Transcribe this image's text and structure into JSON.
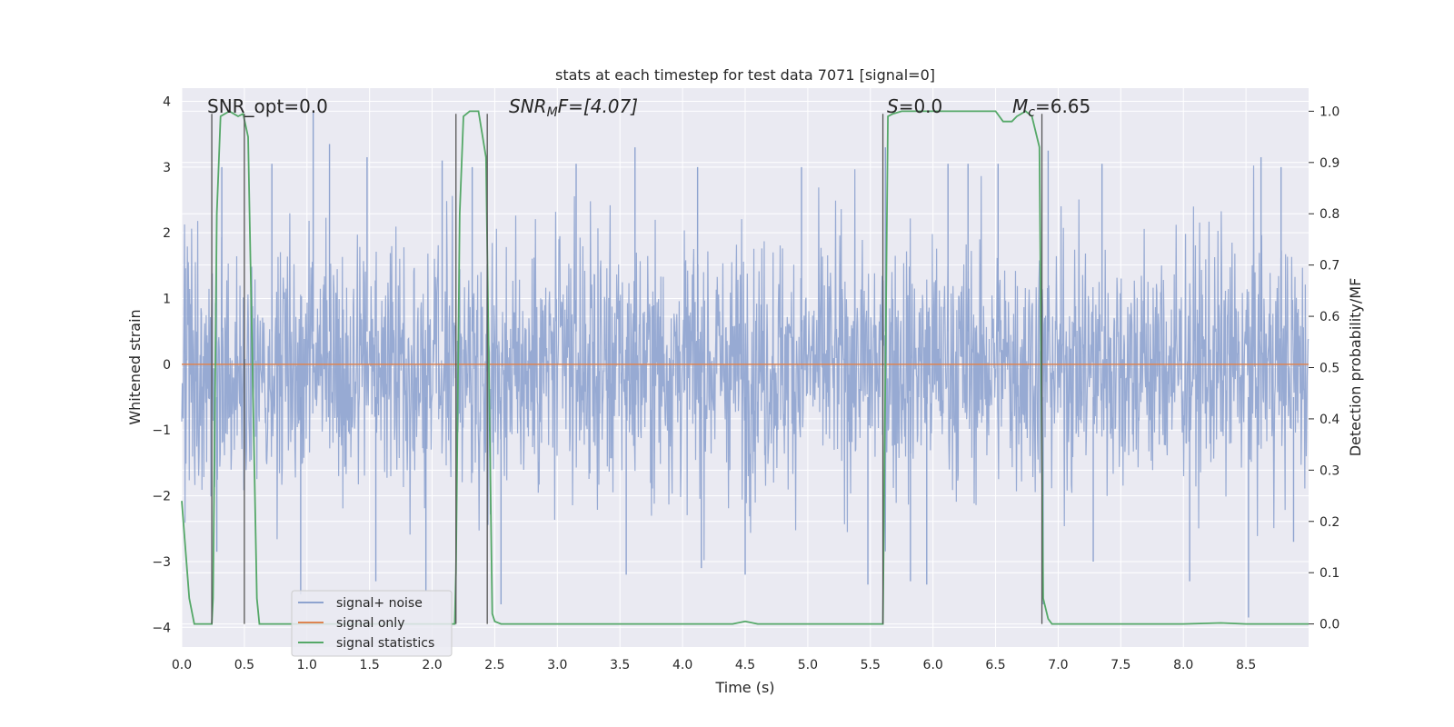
{
  "chart_data": {
    "type": "line",
    "title": "stats at each timestep for test data 7071 [signal=0]",
    "xlabel": "Time (s)",
    "ylabel": "Whitened strain",
    "y2label": "Detection probability/MF",
    "xlim": [
      0.0,
      9.0
    ],
    "ylim": [
      -4.3,
      4.2
    ],
    "y2lim": [
      -0.045,
      1.045
    ],
    "xticks": [
      0.0,
      0.5,
      1.0,
      1.5,
      2.0,
      2.5,
      3.0,
      3.5,
      4.0,
      4.5,
      5.0,
      5.5,
      6.0,
      6.5,
      7.0,
      7.5,
      8.0,
      8.5
    ],
    "xtick_labels": [
      "0.0",
      "0.5",
      "1.0",
      "1.5",
      "2.0",
      "2.5",
      "3.0",
      "3.5",
      "4.0",
      "4.5",
      "5.0",
      "5.5",
      "6.0",
      "6.5",
      "7.0",
      "7.5",
      "8.0",
      "8.5"
    ],
    "yticks": [
      -4,
      -3,
      -2,
      -1,
      0,
      1,
      2,
      3,
      4
    ],
    "ytick_labels": [
      "−4",
      "−3",
      "−2",
      "−1",
      "0",
      "1",
      "2",
      "3",
      "4"
    ],
    "y2ticks": [
      0.0,
      0.1,
      0.2,
      0.3,
      0.4,
      0.5,
      0.6,
      0.7,
      0.8,
      0.9,
      1.0
    ],
    "y2tick_labels": [
      "0.0",
      "0.1",
      "0.2",
      "0.3",
      "0.4",
      "0.5",
      "0.6",
      "0.7",
      "0.8",
      "0.9",
      "1.0"
    ],
    "grid": true,
    "legend_position": "lower-left",
    "annotations": {
      "snr_opt": "SNR_opt=0.0",
      "snr_mf_prefix": "SNR",
      "snr_mf_sub": "M",
      "snr_mf_suffix": "F=[4.07]",
      "s_prefix": "S",
      "s_value": "=0.0",
      "mc_prefix": "M",
      "mc_sub": "c",
      "mc_value": "=6.65"
    },
    "noise_envelope": {
      "description": "whitened strain noise, signal+ noise series",
      "typical_range": [
        -2.0,
        2.5
      ],
      "max": 3.85,
      "min": -3.85,
      "spikes_high": [
        [
          0.32,
          3.0
        ],
        [
          0.72,
          3.05
        ],
        [
          1.05,
          3.85
        ],
        [
          1.18,
          3.35
        ],
        [
          1.48,
          3.15
        ],
        [
          2.08,
          3.1
        ],
        [
          2.32,
          3.0
        ],
        [
          3.15,
          3.05
        ],
        [
          3.62,
          3.3
        ],
        [
          4.12,
          3.0
        ],
        [
          4.95,
          3.0
        ],
        [
          5.62,
          3.3
        ],
        [
          6.12,
          3.05
        ],
        [
          6.28,
          3.05
        ],
        [
          6.52,
          3.05
        ],
        [
          6.92,
          3.25
        ],
        [
          7.35,
          3.05
        ],
        [
          8.62,
          3.15
        ],
        [
          8.78,
          3.0
        ]
      ],
      "spikes_low": [
        [
          0.28,
          -2.85
        ],
        [
          0.95,
          -3.5
        ],
        [
          1.55,
          -3.3
        ],
        [
          1.95,
          -3.45
        ],
        [
          2.55,
          -3.65
        ],
        [
          3.55,
          -3.2
        ],
        [
          4.15,
          -3.1
        ],
        [
          4.5,
          -3.2
        ],
        [
          5.48,
          -3.35
        ],
        [
          5.82,
          -3.3
        ],
        [
          5.95,
          -3.35
        ],
        [
          6.88,
          -3.65
        ],
        [
          7.28,
          -3.0
        ],
        [
          8.05,
          -3.3
        ],
        [
          8.52,
          -3.85
        ],
        [
          8.88,
          -2.7
        ]
      ]
    },
    "series": [
      {
        "name": "signal+ noise",
        "axis": "left",
        "color": "#8ea3cf",
        "kind": "noise"
      },
      {
        "name": "signal only",
        "axis": "left",
        "color": "#dd8452",
        "x": [
          0.0,
          9.0
        ],
        "y": [
          0.0,
          0.0
        ]
      },
      {
        "name": "signal statistics",
        "axis": "right",
        "color": "#55a868",
        "x": [
          0.0,
          0.06,
          0.1,
          0.24,
          0.25,
          0.28,
          0.31,
          0.38,
          0.45,
          0.49,
          0.53,
          0.6,
          0.62,
          1.0,
          1.5,
          2.0,
          2.18,
          2.19,
          2.22,
          2.25,
          2.3,
          2.37,
          2.43,
          2.48,
          2.5,
          2.55,
          3.0,
          3.5,
          4.0,
          4.4,
          4.5,
          4.6,
          5.0,
          5.5,
          5.6,
          5.64,
          5.68,
          5.75,
          6.0,
          6.5,
          6.56,
          6.63,
          6.67,
          6.74,
          6.79,
          6.85,
          6.88,
          6.92,
          6.95,
          7.5,
          8.0,
          8.3,
          8.5,
          9.0
        ],
        "y": [
          0.24,
          0.05,
          0.0,
          0.0,
          0.05,
          0.8,
          0.99,
          1.0,
          0.99,
          0.995,
          0.95,
          0.05,
          0.0,
          0.0,
          0.0,
          0.0,
          0.0,
          0.1,
          0.8,
          0.99,
          1.0,
          1.0,
          0.91,
          0.02,
          0.005,
          0.0,
          0.0,
          0.0,
          0.0,
          0.0,
          0.005,
          0.0,
          0.0,
          0.0,
          0.0,
          0.99,
          0.995,
          1.0,
          1.0,
          1.0,
          0.98,
          0.98,
          0.99,
          1.0,
          0.99,
          0.93,
          0.05,
          0.01,
          0.0,
          0.0,
          0.0,
          0.002,
          0.0,
          0.0
        ]
      }
    ],
    "vertical_markers": [
      0.24,
      0.5,
      2.19,
      2.44,
      5.6,
      6.87
    ]
  }
}
